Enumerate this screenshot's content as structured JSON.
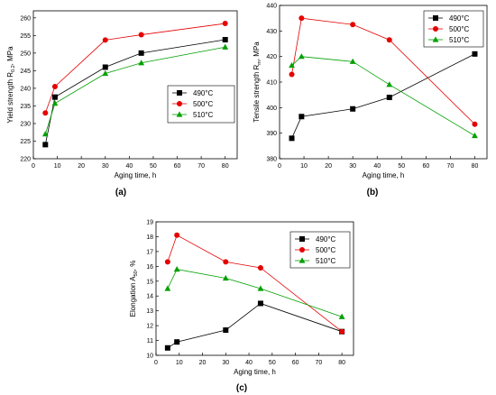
{
  "chart_data": [
    {
      "type": "line",
      "panel_label": "(a)",
      "xlabel": "Aging time, h",
      "ylabel": "Yield strength R",
      "ylabel_sub": "0.2",
      "ylabel_suffix": ", MPa",
      "xlim": [
        0,
        85
      ],
      "ylim": [
        220,
        262
      ],
      "xticks": [
        0,
        10,
        20,
        30,
        40,
        50,
        60,
        70,
        80
      ],
      "yticks": [
        220,
        225,
        230,
        235,
        240,
        245,
        250,
        255,
        260
      ],
      "legend": "right-center",
      "series": [
        {
          "name": "490°C",
          "color": "#000000",
          "marker": "square",
          "x": [
            5,
            9,
            30,
            45,
            80
          ],
          "y": [
            224,
            237.5,
            246,
            250,
            253.8
          ]
        },
        {
          "name": "500°C",
          "color": "#e60000",
          "marker": "circle",
          "x": [
            5,
            9,
            30,
            45,
            80
          ],
          "y": [
            233,
            240.5,
            253.7,
            255.2,
            258.4
          ]
        },
        {
          "name": "510°C",
          "color": "#00a000",
          "marker": "triangle",
          "x": [
            5,
            9,
            30,
            45,
            80
          ],
          "y": [
            227,
            235.7,
            244.2,
            247.2,
            251.7
          ]
        }
      ]
    },
    {
      "type": "line",
      "panel_label": "(b)",
      "xlabel": "Aging time, h",
      "ylabel": "Tensile strength R",
      "ylabel_sub": "m",
      "ylabel_suffix": ", MPa",
      "xlim": [
        0,
        85
      ],
      "ylim": [
        380,
        440
      ],
      "xticks": [
        0,
        10,
        20,
        30,
        40,
        50,
        60,
        70,
        80
      ],
      "yticks": [
        380,
        390,
        400,
        410,
        420,
        430,
        440
      ],
      "legend": "top-right",
      "series": [
        {
          "name": "490°C",
          "color": "#000000",
          "marker": "square",
          "x": [
            5,
            9,
            30,
            45,
            80
          ],
          "y": [
            388,
            396.5,
            399.5,
            404,
            421
          ]
        },
        {
          "name": "500°C",
          "color": "#e60000",
          "marker": "circle",
          "x": [
            5,
            9,
            30,
            45,
            80
          ],
          "y": [
            413,
            435,
            432.5,
            426.5,
            393.5
          ]
        },
        {
          "name": "510°C",
          "color": "#00a000",
          "marker": "triangle",
          "x": [
            5,
            9,
            30,
            45,
            80
          ],
          "y": [
            416.5,
            420,
            418,
            409,
            389
          ]
        }
      ]
    },
    {
      "type": "line",
      "panel_label": "(c)",
      "xlabel": "Aging time, h",
      "ylabel": "Elongation A",
      "ylabel_sub": "50",
      "ylabel_suffix": ", %",
      "xlim": [
        0,
        85
      ],
      "ylim": [
        10,
        19
      ],
      "xticks": [
        0,
        10,
        20,
        30,
        40,
        50,
        60,
        70,
        80
      ],
      "yticks": [
        10,
        11,
        12,
        13,
        14,
        15,
        16,
        17,
        18,
        19
      ],
      "legend": "top-right",
      "series": [
        {
          "name": "490°C",
          "color": "#000000",
          "marker": "square",
          "x": [
            5,
            9,
            30,
            45,
            80
          ],
          "y": [
            10.5,
            10.9,
            11.7,
            13.5,
            11.6
          ]
        },
        {
          "name": "500°C",
          "color": "#e60000",
          "marker": "circle",
          "x": [
            5,
            9,
            30,
            45,
            80
          ],
          "y": [
            16.3,
            18.1,
            16.3,
            15.9,
            11.6
          ]
        },
        {
          "name": "510°C",
          "color": "#00a000",
          "marker": "triangle",
          "x": [
            5,
            9,
            30,
            45,
            80
          ],
          "y": [
            14.5,
            15.8,
            15.2,
            14.5,
            12.6
          ]
        }
      ]
    }
  ]
}
